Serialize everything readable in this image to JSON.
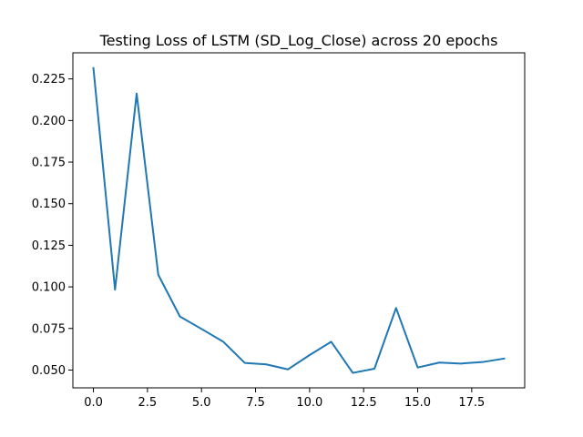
{
  "chart_data": {
    "type": "line",
    "title": "Testing Loss of LSTM (SD_Log_Close) across 20 epochs",
    "xlabel": "",
    "ylabel": "",
    "xlim": [
      -0.95,
      19.95
    ],
    "ylim": [
      0.0393,
      0.2407
    ],
    "x_ticks": [
      0,
      2.5,
      5,
      7.5,
      10,
      12.5,
      15,
      17.5
    ],
    "x_tick_labels": [
      "0.0",
      "2.5",
      "5.0",
      "7.5",
      "10.0",
      "12.5",
      "15.0",
      "17.5"
    ],
    "y_ticks": [
      0.05,
      0.075,
      0.1,
      0.125,
      0.15,
      0.175,
      0.2,
      0.225
    ],
    "y_tick_labels": [
      "0.050",
      "0.075",
      "0.100",
      "0.125",
      "0.150",
      "0.175",
      "0.200",
      "0.225"
    ],
    "grid": false,
    "series": [
      {
        "color": "#1f77b4",
        "x": [
          0,
          1,
          2,
          3,
          4,
          5,
          6,
          7,
          8,
          9,
          10,
          11,
          12,
          13,
          14,
          15,
          16,
          17,
          18,
          19
        ],
        "y": [
          0.2315,
          0.0983,
          0.2162,
          0.1073,
          0.0822,
          0.0747,
          0.0671,
          0.0543,
          0.0534,
          0.0504,
          0.059,
          0.067,
          0.0483,
          0.0508,
          0.0873,
          0.0515,
          0.0545,
          0.0539,
          0.0548,
          0.0569
        ]
      }
    ]
  }
}
